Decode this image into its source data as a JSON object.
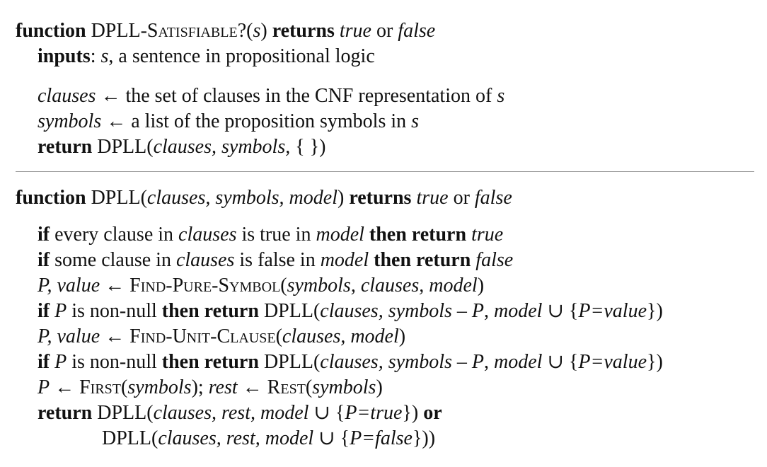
{
  "fn1": {
    "kw_function": "function",
    "name": "DPLL-Satisfiable?",
    "param_open": "(",
    "param": "s",
    "param_close": ")",
    "kw_returns": "returns",
    "ret_true": "true",
    "ret_or": "or",
    "ret_false": "false",
    "inputs_kw": "inputs",
    "inputs_colon": ":",
    "inputs_var": "s",
    "inputs_desc": ", a sentence in propositional logic",
    "clauses_var": "clauses",
    "clauses_arrow": " ← ",
    "clauses_desc": "the set of clauses in the CNF representation of ",
    "clauses_s": "s",
    "symbols_var": "symbols",
    "symbols_arrow": " ← ",
    "symbols_desc": "a list of the proposition symbols in ",
    "symbols_s": "s",
    "return_kw": "return",
    "return_call": " DPLL(",
    "return_args": "clauses, symbols,",
    "return_tail": " { })"
  },
  "fn2": {
    "kw_function": "function",
    "name": " DPLL(",
    "params": "clauses, symbols, model",
    "name_close": ")",
    "kw_returns": "returns",
    "ret_true": "true",
    "ret_or": "or",
    "ret_false": "false",
    "lines": {
      "l1": {
        "if": "if",
        "a": " every clause in ",
        "b": "clauses",
        "c": " is true in ",
        "d": "model",
        "then": " then return ",
        "e": "true"
      },
      "l2": {
        "if": "if",
        "a": " some clause in ",
        "b": "clauses",
        "c": " is false in ",
        "d": "model",
        "then": " then return ",
        "e": "false"
      },
      "l3": {
        "a": "P, value",
        "arrow": " ← ",
        "fn": "Find-Pure-Symbol",
        "open": "(",
        "args": "symbols, clauses, model",
        "close": ")"
      },
      "l4": {
        "if": "if",
        "p": " P",
        "a": " is non-null ",
        "then": "then return",
        "call": " DPLL(",
        "args": "clauses, symbols",
        "minus": " – ",
        "p2": "P",
        "comma": ", ",
        "model": "model",
        "union": " ∪ {",
        "assign": "P=value",
        "close": "})"
      },
      "l5": {
        "a": "P, value",
        "arrow": " ← ",
        "fn": "Find-Unit-Clause",
        "open": "(",
        "args": "clauses, model",
        "close": ")"
      },
      "l6": {
        "if": "if",
        "p": " P",
        "a": " is non-null ",
        "then": "then return",
        "call": " DPLL(",
        "args": "clauses, symbols",
        "minus": " – ",
        "p2": "P",
        "comma": ", ",
        "model": "model",
        "union": " ∪ {",
        "assign": "P=value",
        "close": "})"
      },
      "l7": {
        "p": "P",
        "arrow1": " ← ",
        "fn1": "First",
        "open1": "(",
        "arg1": "symbols",
        "close1": "); ",
        "rest": "rest",
        "arrow2": " ← ",
        "fn2": "Rest",
        "open2": "(",
        "arg2": "symbols",
        "close2": ")"
      },
      "l8": {
        "ret": "return",
        "call": " DPLL(",
        "args": "clauses, rest, model",
        "union": " ∪ {",
        "assign": "P=true",
        "close": "}) ",
        "or": "or"
      },
      "l9": {
        "call": "DPLL(",
        "args": "clauses, rest, model",
        "union": " ∪ {",
        "assign": "P=false",
        "close": "}))"
      }
    }
  }
}
